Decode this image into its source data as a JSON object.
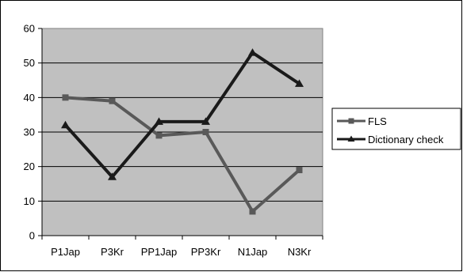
{
  "chart_data": {
    "type": "line",
    "categories": [
      "P1Jap",
      "P3Kr",
      "PP1Jap",
      "PP3Kr",
      "N1Jap",
      "N3Kr"
    ],
    "series": [
      {
        "name": "FLS",
        "values": [
          40,
          39,
          29,
          30,
          7,
          19
        ],
        "color": "#595959",
        "marker": "square"
      },
      {
        "name": "Dictionary check",
        "values": [
          32,
          17,
          33,
          33,
          53,
          44
        ],
        "color": "#1a1a1a",
        "marker": "triangle"
      }
    ],
    "ylim": [
      0,
      60
    ],
    "yticks": [
      "0",
      "10",
      "20",
      "30",
      "40",
      "50",
      "60"
    ],
    "grid": true,
    "plot_background": "#c0c0c0",
    "legend_position": "right",
    "title": "",
    "xlabel": "",
    "ylabel": ""
  }
}
